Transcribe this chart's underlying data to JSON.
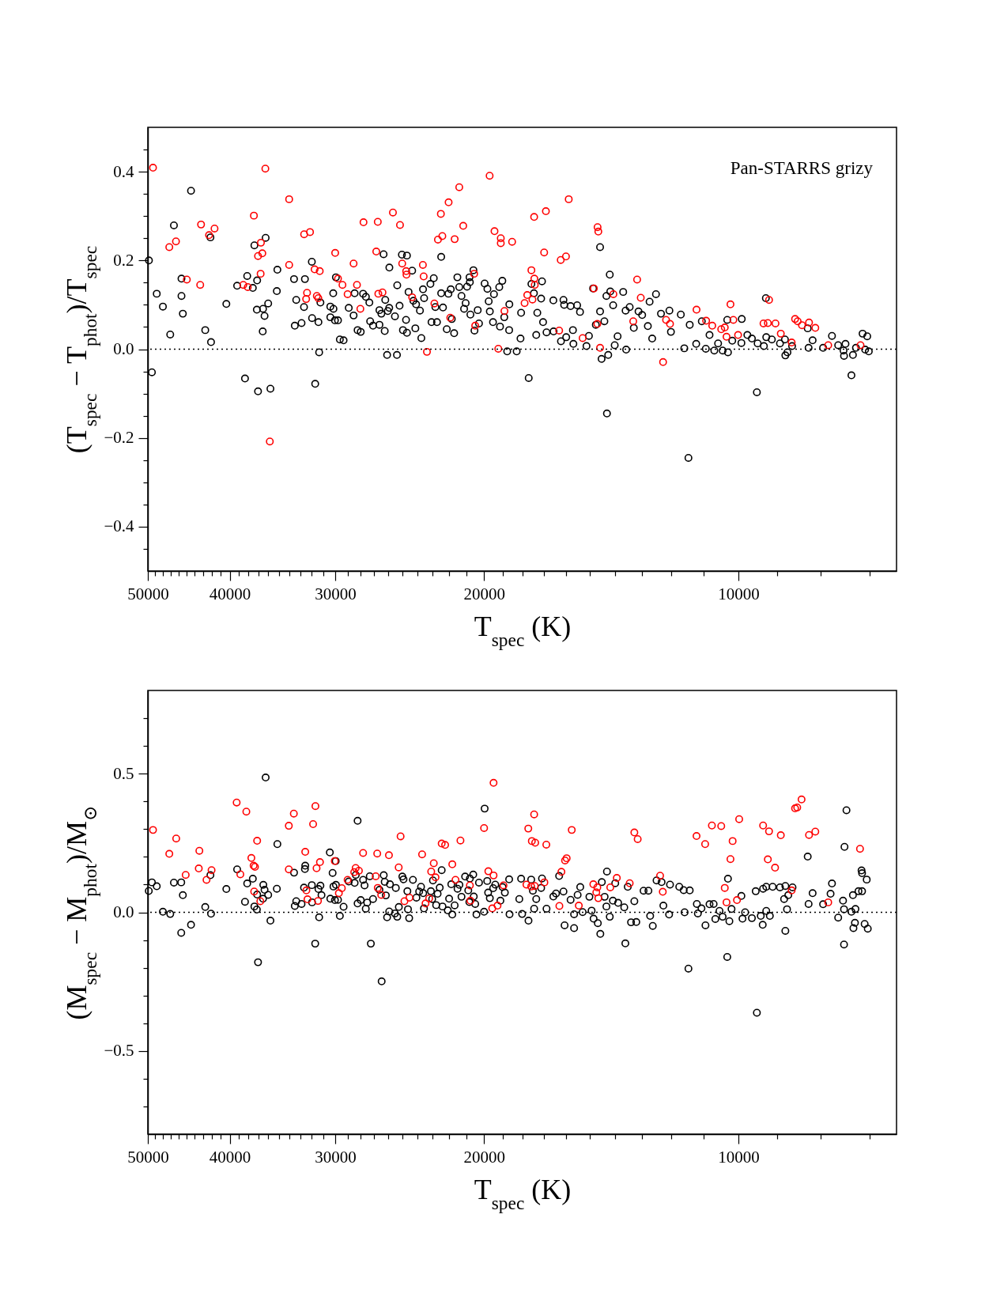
{
  "chart_data": [
    {
      "type": "scatter",
      "ylabel": "(T$_{spec}$ − T$_{phot}$)/T$_{spec}$",
      "xlabel": "T$_{spec}$ (K)",
      "log": "x",
      "marker": "circle",
      "annotations": [
        "Pan-STARRS grizy"
      ],
      "xlim": [
        50000,
        6500
      ],
      "ylim": [
        -0.5,
        0.5
      ],
      "xticks": [
        50000,
        {
          "value": 49000,
          "label": null
        },
        {
          "value": 48000,
          "label": null
        },
        {
          "value": 47000,
          "label": null
        },
        {
          "value": 46000,
          "label": null
        },
        {
          "value": 45000,
          "label": null
        },
        {
          "value": 44000,
          "label": null
        },
        {
          "value": 43000,
          "label": null
        },
        {
          "value": 42000,
          "label": null
        },
        {
          "value": 41000,
          "label": null
        },
        40000,
        {
          "value": 39000,
          "label": null
        },
        {
          "value": 38000,
          "label": null
        },
        {
          "value": 37000,
          "label": null
        },
        {
          "value": 36000,
          "label": null
        },
        {
          "value": 35000,
          "label": null
        },
        {
          "value": 34000,
          "label": null
        },
        {
          "value": 33000,
          "label": null
        },
        {
          "value": 32000,
          "label": null
        },
        {
          "value": 31000,
          "label": null
        },
        30000,
        {
          "value": 29000,
          "label": null
        },
        {
          "value": 28000,
          "label": null
        },
        {
          "value": 27000,
          "label": null
        },
        {
          "value": 26000,
          "label": null
        },
        {
          "value": 25000,
          "label": null
        },
        {
          "value": 24000,
          "label": null
        },
        {
          "value": 23000,
          "label": null
        },
        {
          "value": 22000,
          "label": null
        },
        {
          "value": 21000,
          "label": null
        },
        20000,
        {
          "value": 19000,
          "label": null
        },
        {
          "value": 18000,
          "label": null
        },
        {
          "value": 17000,
          "label": null
        },
        {
          "value": 16000,
          "label": null
        },
        {
          "value": 15000,
          "label": null
        },
        {
          "value": 14000,
          "label": null
        },
        {
          "value": 13000,
          "label": null
        },
        {
          "value": 12000,
          "label": null
        },
        {
          "value": 11000,
          "label": null
        },
        10000,
        {
          "value": 9000,
          "label": null
        },
        {
          "value": 8000,
          "label": null
        },
        {
          "value": 7000,
          "label": null
        }
      ],
      "yticks": [
        {
          "value": -0.45,
          "label": null
        },
        {
          "value": -0.4,
          "label": "−0.4"
        },
        {
          "value": -0.35,
          "label": null
        },
        {
          "value": -0.3,
          "label": null
        },
        {
          "value": -0.25,
          "label": null
        },
        {
          "value": -0.2,
          "label": "−0.2"
        },
        {
          "value": -0.15,
          "label": null
        },
        {
          "value": -0.1,
          "label": null
        },
        {
          "value": -0.05,
          "label": null
        },
        {
          "value": 0,
          "label": "0.0"
        },
        {
          "value": 0.05,
          "label": null
        },
        {
          "value": 0.1,
          "label": null
        },
        {
          "value": 0.15,
          "label": null
        },
        {
          "value": 0.2,
          "label": "0.2"
        },
        {
          "value": 0.25,
          "label": null
        },
        {
          "value": 0.3,
          "label": null
        },
        {
          "value": 0.35,
          "label": null
        },
        {
          "value": 0.4,
          "label": "0.4"
        },
        {
          "value": 0.45,
          "label": null
        }
      ],
      "ref_lines": [
        {
          "axis": "y",
          "value": 0,
          "line_style": "dotted",
          "color": "#000000"
        }
      ],
      "series": [
        {
          "color": "#000000",
          "x": [
            49850,
            49450,
            48800,
            47990,
            47040,
            46570,
            45620,
            45620,
            45450,
            44450,
            42760,
            42160,
            42090,
            40370,
            39200,
            38370,
            38140,
            37560,
            37400,
            37120,
            37150,
            37030,
            36530,
            36380,
            36560,
            36270,
            36020,
            35800,
            35180,
            35130,
            33570,
            33500,
            33370,
            32890,
            32670,
            32590,
            31980,
            31960,
            31690,
            31410,
            31350,
            31240,
            30410,
            30410,
            30150,
            30170,
            30030,
            29950,
            29780,
            29630,
            29330,
            28920,
            28540,
            28460,
            28230,
            27990,
            27810,
            27600,
            27340,
            27280,
            27070,
            26600,
            26600,
            26460,
            26300,
            26220,
            26180,
            26050,
            26000,
            25890,
            25900,
            25500,
            25360,
            25340,
            25180,
            25020,
            24950,
            24740,
            24680,
            24680,
            24570,
            24330,
            24250,
            24120,
            24070,
            23820,
            23730,
            23620,
            23550,
            23150,
            23080,
            22940,
            22840,
            22740,
            22480,
            22480,
            22370,
            22140,
            22040,
            21900,
            21840,
            21700,
            21510,
            21400,
            21270,
            21120,
            21030,
            20950,
            20810,
            20790,
            20760,
            20590,
            20530,
            20350,
            20280,
            19970,
            19820,
            19750,
            19690,
            19520,
            19470,
            19190,
            19150,
            19030,
            18930,
            18780,
            18680,
            18670,
            18300,
            18110,
            18080,
            17710,
            17580,
            17460,
            17350,
            17300,
            17120,
            17080,
            17030,
            16870,
            16560,
            16550,
            16220,
            16110,
            16080,
            15990,
            15800,
            15700,
            15680,
            15520,
            15400,
            15130,
            15030,
            14860,
            14750,
            14580,
            14580,
            14520,
            14410,
            14330,
            14260,
            14200,
            14310,
            14180,
            14070,
            14010,
            13900,
            13690,
            13600,
            13580,
            13450,
            13300,
            13130,
            13000,
            12800,
            12740,
            12650,
            12520,
            12350,
            12070,
            12020,
            11700,
            11590,
            11460,
            11420,
            11220,
            11050,
            10930,
            10820,
            10680,
            10570,
            10440,
            10310,
            10290,
            10170,
            9910,
            9920,
            9760,
            9640,
            9510,
            9490,
            9330,
            9280,
            9270,
            9130,
            8930,
            8810,
            8800,
            8750,
            8640,
            8280,
            8260,
            8170,
            7940,
            7750,
            7620,
            7510,
            7500,
            7470,
            7350,
            7320,
            7260,
            7130,
            7080,
            7040,
            7010
          ],
          "values": [
            0.2,
            -0.052,
            0.125,
            0.096,
            0.033,
            0.279,
            0.159,
            0.12,
            0.08,
            0.357,
            0.043,
            0.252,
            0.016,
            0.102,
            0.143,
            -0.066,
            0.165,
            0.138,
            0.234,
            0.155,
            0.089,
            -0.095,
            0.091,
            0.075,
            0.04,
            0.251,
            0.103,
            -0.089,
            0.131,
            0.179,
            0.158,
            0.053,
            0.111,
            0.059,
            0.095,
            0.158,
            0.197,
            0.07,
            -0.078,
            0.061,
            -0.007,
            0.105,
            0.096,
            0.072,
            0.091,
            0.126,
            0.065,
            0.162,
            0.065,
            0.022,
            0.02,
            0.093,
            0.076,
            0.126,
            0.043,
            0.039,
            0.125,
            0.118,
            0.105,
            0.063,
            0.053,
            0.055,
            0.088,
            0.08,
            0.214,
            0.041,
            0.111,
            -0.013,
            0.086,
            0.184,
            0.093,
            0.074,
            -0.013,
            0.144,
            0.098,
            0.213,
            0.043,
            0.066,
            0.037,
            0.211,
            0.129,
            0.177,
            0.109,
            0.047,
            0.101,
            0.087,
            0.025,
            0.135,
            0.115,
            0.147,
            0.061,
            0.16,
            0.095,
            0.061,
            0.208,
            0.126,
            0.094,
            0.045,
            0.125,
            0.135,
            0.068,
            0.036,
            0.162,
            0.14,
            0.12,
            0.091,
            0.104,
            0.141,
            0.162,
            0.151,
            0.078,
            0.178,
            0.042,
            0.088,
            0.058,
            0.148,
            0.136,
            0.108,
            0.085,
            0.061,
            0.124,
            0.14,
            0.051,
            0.154,
            0.072,
            -0.005,
            0.043,
            0.101,
            -0.005,
            0.024,
            0.082,
            -0.065,
            0.147,
            0.126,
            0.032,
            0.082,
            0.114,
            0.153,
            0.061,
            0.038,
            0.11,
            0.04,
            0.018,
            0.111,
            0.1,
            0.027,
            0.097,
            0.043,
            0.012,
            0.099,
            0.084,
            0.007,
            0.03,
            0.137,
            0.055,
            0.23,
            0.085,
            -0.022,
            0.063,
            0.12,
            -0.013,
            0.168,
            -0.145,
            0.13,
            0.099,
            0.009,
            0.029,
            0.129,
            0.087,
            -0.001,
            0.095,
            0.048,
            0.085,
            0.077,
            0.052,
            0.107,
            0.024,
            0.124,
            0.08,
            0.087,
            0.039,
            0.078,
            0.002,
            -0.245,
            0.055,
            0.012,
            0.063,
            0.001,
            0.032,
            -0.003,
            0.013,
            -0.003,
            0.066,
            -0.007,
            0.019,
            0.068,
            0.014,
            0.032,
            0.024,
            -0.097,
            0.013,
            0.007,
            0.115,
            0.027,
            0.022,
            0.013,
            0.022,
            -0.014,
            -0.007,
            0.007,
            0.047,
            0.003,
            0.02,
            0.003,
            0.03,
            0.009,
            -0.003,
            -0.015,
            0.012,
            -0.059,
            -0.013,
            0.003,
            0.035,
            -0.001,
            0.029,
            -0.005
          ]
        },
        {
          "color": "#ff0000",
          "x": [
            49300,
            36300,
            19700,
            21400,
            34020,
            22030,
            25640,
            37450,
            22500,
            27780,
            26720,
            25150,
            21170,
            43250,
            41690,
            42320,
            32140,
            32660,
            19440,
            19110,
            19110,
            18530,
            22680,
            22410,
            21670,
            46310,
            47160,
            36740,
            36600,
            37030,
            36770,
            30010,
            26830,
            34020,
            28540,
            25000,
            23630,
            24730,
            24710,
            23580,
            20550,
            44960,
            43350,
            38550,
            38080,
            31740,
            31300,
            32400,
            32480,
            31550,
            31420,
            29780,
            29420,
            29010,
            28280,
            28020,
            26680,
            26380,
            24330,
            22900,
            21930,
            20490,
            18920,
            19240,
            23370,
            35860,
            15880,
            16900,
            17450,
            14680,
            14650,
            16980,
            16230,
            16000,
            17580,
            17440,
            17420,
            17780,
            17530,
            17910,
            14830,
            14060,
            13180,
            13050,
            13320,
            14690,
            16300,
            15290,
            14580,
            12180,
            12050,
            12280,
            11210,
            10920,
            10740,
            10480,
            10380,
            10330,
            10220,
            10140,
            10010,
            9200,
            9340,
            9230,
            9040,
            8910,
            8650,
            8570,
            8510,
            8410,
            8250,
            8110,
            7830,
            7170
          ],
          "values": [
            0.409,
            0.407,
            0.391,
            0.365,
            0.338,
            0.331,
            0.308,
            0.301,
            0.305,
            0.286,
            0.287,
            0.28,
            0.278,
            0.281,
            0.272,
            0.257,
            0.264,
            0.259,
            0.266,
            0.25,
            0.239,
            0.242,
            0.247,
            0.255,
            0.248,
            0.243,
            0.23,
            0.24,
            0.216,
            0.21,
            0.17,
            0.217,
            0.22,
            0.19,
            0.193,
            0.193,
            0.19,
            0.176,
            0.168,
            0.164,
            0.17,
            0.157,
            0.145,
            0.145,
            0.14,
            0.18,
            0.176,
            0.127,
            0.113,
            0.12,
            0.115,
            0.159,
            0.145,
            0.124,
            0.145,
            0.091,
            0.125,
            0.128,
            0.117,
            0.103,
            0.071,
            0.053,
            0.086,
            0.001,
            -0.006,
            -0.208,
            0.338,
            0.311,
            0.298,
            0.275,
            0.265,
            0.218,
            0.201,
            0.209,
            0.178,
            0.159,
            0.145,
            0.122,
            0.112,
            0.104,
            0.137,
            0.124,
            0.157,
            0.116,
            0.063,
            0.057,
            0.042,
            0.025,
            0.003,
            0.066,
            0.057,
            -0.029,
            0.089,
            0.064,
            0.053,
            0.045,
            0.049,
            0.028,
            0.101,
            0.066,
            0.032,
            0.111,
            0.058,
            0.059,
            0.058,
            0.035,
            0.015,
            0.068,
            0.063,
            0.054,
            0.06,
            0.048,
            0.009,
            0.009
          ]
        }
      ]
    },
    {
      "type": "scatter",
      "ylabel": "(M$_{spec}$ − M$_{phot}$)/M$_{⊙}$",
      "xlabel": "T$_{spec}$ (K)",
      "log": "x",
      "marker": "circle",
      "xlim": [
        50000,
        6500
      ],
      "ylim": [
        -0.8,
        0.8
      ],
      "xticks": [
        50000,
        {
          "value": 49000,
          "label": null
        },
        {
          "value": 48000,
          "label": null
        },
        {
          "value": 47000,
          "label": null
        },
        {
          "value": 46000,
          "label": null
        },
        {
          "value": 45000,
          "label": null
        },
        {
          "value": 44000,
          "label": null
        },
        {
          "value": 43000,
          "label": null
        },
        {
          "value": 42000,
          "label": null
        },
        {
          "value": 41000,
          "label": null
        },
        40000,
        {
          "value": 39000,
          "label": null
        },
        {
          "value": 38000,
          "label": null
        },
        {
          "value": 37000,
          "label": null
        },
        {
          "value": 36000,
          "label": null
        },
        {
          "value": 35000,
          "label": null
        },
        {
          "value": 34000,
          "label": null
        },
        {
          "value": 33000,
          "label": null
        },
        {
          "value": 32000,
          "label": null
        },
        {
          "value": 31000,
          "label": null
        },
        30000,
        {
          "value": 29000,
          "label": null
        },
        {
          "value": 28000,
          "label": null
        },
        {
          "value": 27000,
          "label": null
        },
        {
          "value": 26000,
          "label": null
        },
        {
          "value": 25000,
          "label": null
        },
        {
          "value": 24000,
          "label": null
        },
        {
          "value": 23000,
          "label": null
        },
        {
          "value": 22000,
          "label": null
        },
        {
          "value": 21000,
          "label": null
        },
        20000,
        {
          "value": 19000,
          "label": null
        },
        {
          "value": 18000,
          "label": null
        },
        {
          "value": 17000,
          "label": null
        },
        {
          "value": 16000,
          "label": null
        },
        {
          "value": 15000,
          "label": null
        },
        {
          "value": 14000,
          "label": null
        },
        {
          "value": 13000,
          "label": null
        },
        {
          "value": 12000,
          "label": null
        },
        {
          "value": 11000,
          "label": null
        },
        10000,
        {
          "value": 9000,
          "label": null
        },
        {
          "value": 8000,
          "label": null
        },
        {
          "value": 7000,
          "label": null
        }
      ],
      "yticks": [
        {
          "value": -0.7,
          "label": null
        },
        {
          "value": -0.6,
          "label": null
        },
        {
          "value": -0.5,
          "label": "−0.5"
        },
        {
          "value": -0.4,
          "label": null
        },
        {
          "value": -0.3,
          "label": null
        },
        {
          "value": -0.2,
          "label": null
        },
        {
          "value": -0.1,
          "label": null
        },
        {
          "value": 0,
          "label": "0.0"
        },
        {
          "value": 0.1,
          "label": null
        },
        {
          "value": 0.2,
          "label": null
        },
        {
          "value": 0.3,
          "label": null
        },
        {
          "value": 0.4,
          "label": null
        },
        {
          "value": 0.5,
          "label": "0.5"
        },
        {
          "value": 0.6,
          "label": null
        },
        {
          "value": 0.7,
          "label": null
        }
      ],
      "ref_lines": [
        {
          "axis": "y",
          "value": 0,
          "line_style": "dotted",
          "color": "#000000"
        }
      ],
      "series": [
        {
          "color": "#000000",
          "x": [
            49870,
            49450,
            48800,
            47990,
            47040,
            46570,
            45650,
            45650,
            45450,
            44450,
            42760,
            42160,
            42090,
            40370,
            39200,
            38370,
            38140,
            37560,
            37400,
            37150,
            37120,
            37030,
            36500,
            36530,
            36380,
            36270,
            36020,
            35800,
            35180,
            35130,
            33570,
            33500,
            33370,
            32890,
            32670,
            32590,
            32560,
            31980,
            31960,
            31690,
            31410,
            31350,
            31240,
            31150,
            30450,
            30410,
            30220,
            30150,
            30030,
            29970,
            29950,
            29780,
            29630,
            29330,
            28920,
            28460,
            28370,
            28230,
            28230,
            27990,
            27810,
            27700,
            27610,
            27500,
            27310,
            27230,
            27070,
            26600,
            26440,
            26290,
            26220,
            26140,
            26050,
            25900,
            25850,
            25500,
            25440,
            25340,
            25230,
            24990,
            24910,
            24650,
            24610,
            24530,
            24280,
            24050,
            23870,
            23750,
            23610,
            23560,
            23120,
            23040,
            22990,
            22790,
            22700,
            22570,
            22450,
            22400,
            22080,
            22000,
            21870,
            21810,
            21670,
            21500,
            21390,
            21270,
            21060,
            20880,
            20820,
            20790,
            20600,
            20570,
            20490,
            20420,
            20280,
            20000,
            19970,
            19830,
            19780,
            19690,
            19510,
            19400,
            19130,
            19020,
            18900,
            18680,
            18660,
            18080,
            18030,
            18170,
            17720,
            17590,
            17510,
            17450,
            17350,
            17120,
            17080,
            16870,
            16560,
            16440,
            16300,
            16110,
            16060,
            15800,
            15650,
            15650,
            15500,
            15390,
            15290,
            15010,
            14920,
            14840,
            14670,
            14570,
            14510,
            14400,
            14330,
            14310,
            14200,
            14080,
            13990,
            13880,
            13650,
            13610,
            13520,
            13400,
            13280,
            13210,
            12950,
            12780,
            12720,
            12630,
            12500,
            12330,
            12270,
            12080,
            12050,
            11750,
            11610,
            11580,
            11460,
            11420,
            11200,
            11170,
            11060,
            10940,
            10820,
            10700,
            10650,
            10530,
            10440,
            10310,
            10290,
            10250,
            10190,
            9920,
            9890,
            9820,
            9640,
            9540,
            9510,
            9410,
            9360,
            9350,
            9270,
            9270,
            9180,
            9110,
            8930,
            8830,
            8800,
            8800,
            8760,
            8730,
            8630,
            8280,
            8260,
            8170,
            7940,
            7780,
            7750,
            7620,
            7520,
            7500,
            7490,
            7450,
            7500,
            7350,
            7320,
            7310,
            7280,
            7270,
            7210,
            7150,
            7140,
            7140,
            7090,
            7050,
            7030
          ],
          "values": [
            0.077,
            0.108,
            0.094,
            0.002,
            -0.006,
            0.107,
            0.108,
            -0.074,
            0.062,
            -0.045,
            0.019,
            0.134,
            -0.005,
            0.084,
            0.155,
            0.038,
            0.104,
            0.121,
            0.021,
            0.01,
            0.064,
            -0.18,
            0.099,
            0.049,
            0.081,
            0.486,
            0.063,
            -0.03,
            0.085,
            0.246,
            0.143,
            0.023,
            0.04,
            0.03,
            0.089,
            0.156,
            0.168,
            0.098,
            0.036,
            -0.113,
            0.084,
            -0.018,
            0.096,
            0.062,
            0.216,
            0.049,
            0.142,
            0.093,
            0.044,
            0.185,
            0.099,
            0.045,
            -0.013,
            0.02,
            0.111,
            0.106,
            0.135,
            0.33,
            0.032,
            0.044,
            0.117,
            0.097,
            0.013,
            0.035,
            0.13,
            -0.113,
            0.048,
            0.081,
            -0.249,
            0.134,
            0.11,
            0.061,
            -0.018,
            0.003,
            0.101,
            -0.004,
            0.088,
            -0.016,
            0.019,
            0.129,
            0.119,
            0.076,
            0.011,
            -0.021,
            0.117,
            0.053,
            0.075,
            0.092,
            0.069,
            0.014,
            0.076,
            0.048,
            0.115,
            0.026,
            0.067,
            0.089,
            0.152,
            0.021,
            0.007,
            0.049,
            0.101,
            -0.008,
            0.025,
            0.085,
            0.099,
            0.056,
            0.129,
            0.079,
            0.037,
            0.122,
            0.136,
            0.057,
            0.03,
            -0.008,
            0.107,
            0.002,
            0.374,
            0.113,
            0.071,
            0.051,
            0.087,
            0.1,
            0.042,
            0.091,
            0.071,
            0.119,
            -0.007,
            0.121,
            -0.006,
            0.048,
            -0.03,
            0.118,
            0.078,
            0.013,
            0.048,
            0.088,
            0.122,
            0.013,
            0.057,
            0.068,
            0.131,
            0.075,
            -0.047,
            0.045,
            -0.057,
            -0.007,
            0.063,
            0.091,
            0.001,
            0.056,
            0.006,
            -0.023,
            -0.039,
            -0.078,
            0.109,
            0.056,
            0.021,
            0.147,
            -0.016,
            0.042,
            0.105,
            0.034,
            0.018,
            -0.112,
            0.092,
            -0.036,
            0.04,
            -0.035,
            0.078,
            0.078,
            -0.013,
            -0.049,
            0.115,
            0.109,
            0.024,
            -0.008,
            0.1,
            0.092,
            0.08,
            0.0,
            -0.203,
            0.079,
            0.03,
            -0.004,
            0.014,
            -0.047,
            0.029,
            0.03,
            -0.024,
            0.005,
            -0.016,
            -0.161,
            0.121,
            -0.032,
            0.012,
            0.059,
            -0.023,
            0.0,
            -0.021,
            0.076,
            -0.362,
            -0.013,
            -0.045,
            0.085,
            0.092,
            0.005,
            -0.013,
            0.092,
            0.09,
            0.048,
            0.095,
            -0.067,
            0.011,
            0.062,
            0.09,
            0.201,
            0.03,
            0.069,
            0.029,
            0.067,
            0.104,
            -0.019,
            0.042,
            -0.116,
            0.236,
            0.368,
            0.011,
            0.002,
            0.062,
            -0.057,
            -0.038,
            0.012,
            0.076,
            0.151,
            0.141,
            0.076,
            -0.042,
            0.118,
            -0.059
          ]
        },
        {
          "color": "#ff0000",
          "x": [
            49300,
            47160,
            46280,
            45100,
            43520,
            43450,
            42610,
            42030,
            39250,
            38230,
            38860,
            37710,
            37480,
            37340,
            37120,
            37420,
            36800,
            34050,
            34050,
            33590,
            32560,
            31870,
            31670,
            32460,
            32360,
            31570,
            31450,
            31280,
            30040,
            29710,
            29470,
            29010,
            28490,
            28380,
            28130,
            27810,
            26870,
            26760,
            26720,
            26470,
            25920,
            25240,
            25110,
            24850,
            24510,
            23680,
            23460,
            23230,
            23100,
            22940,
            22830,
            22450,
            22240,
            21810,
            21620,
            21330,
            20790,
            20760,
            20000,
            19770,
            19490,
            19490,
            19560,
            19280,
            18970,
            17730,
            17450,
            17560,
            17400,
            16880,
            17820,
            17590,
            17420,
            16970,
            16200,
            16040,
            15970,
            15750,
            16290,
            15450,
            14850,
            14690,
            14730,
            14650,
            14180,
            13930,
            13450,
            13280,
            13160,
            12380,
            12290,
            11210,
            10950,
            10750,
            10480,
            10380,
            10330,
            10220,
            10160,
            10040,
            9980,
            9350,
            9200,
            9230,
            9050,
            8910,
            8650,
            8570,
            8520,
            8420,
            8250,
            8110,
            7830,
            7180
          ],
          "values": [
            0.297,
            0.211,
            0.266,
            0.135,
            0.158,
            0.222,
            0.117,
            0.152,
            0.396,
            0.363,
            0.137,
            0.196,
            0.168,
            0.164,
            0.258,
            0.075,
            0.04,
            0.312,
            0.155,
            0.356,
            0.218,
            0.318,
            0.383,
            0.079,
            0.047,
            0.159,
            0.041,
            0.181,
            0.185,
            0.069,
            0.087,
            0.117,
            0.145,
            0.16,
            0.15,
            0.214,
            0.13,
            0.212,
            0.088,
            0.063,
            0.206,
            0.162,
            0.274,
            0.04,
            0.053,
            0.209,
            0.032,
            0.05,
            0.147,
            0.177,
            0.126,
            0.248,
            0.243,
            0.173,
            0.117,
            0.259,
            0.097,
            0.042,
            0.304,
            0.148,
            0.467,
            0.133,
            0.014,
            0.024,
            0.097,
            0.302,
            0.353,
            0.257,
            0.251,
            0.244,
            0.1,
            0.093,
            0.095,
            0.108,
            0.146,
            0.187,
            0.195,
            0.297,
            0.023,
            0.024,
            0.101,
            0.09,
            0.072,
            0.051,
            0.09,
            0.124,
            0.105,
            0.288,
            0.264,
            0.132,
            0.074,
            0.275,
            0.246,
            0.313,
            0.311,
            0.088,
            0.036,
            0.192,
            0.257,
            0.044,
            0.336,
            0.313,
            0.292,
            0.191,
            0.161,
            0.278,
            0.079,
            0.375,
            0.378,
            0.407,
            0.279,
            0.291,
            0.036,
            0.229
          ]
        }
      ]
    }
  ]
}
